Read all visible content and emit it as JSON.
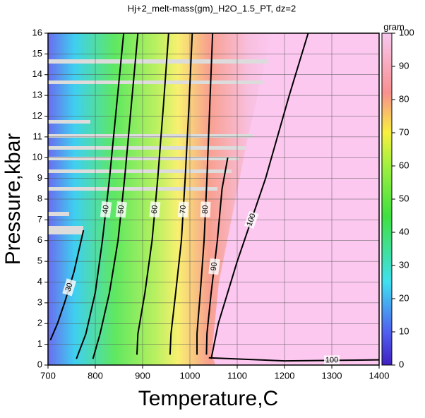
{
  "chart_data": {
    "type": "contour",
    "title": "Hj+2_melt-mass(gm)_H2O_1.5_PT, dz=2",
    "x_label": "Temperature,C",
    "y_label": "Pressure,kbar",
    "xlim": [
      700,
      1400
    ],
    "ylim": [
      0,
      16
    ],
    "xticks": [
      700,
      800,
      900,
      1000,
      1100,
      1200,
      1300,
      1400
    ],
    "yticks": [
      0,
      1,
      2,
      3,
      4,
      5,
      6,
      7,
      8,
      9,
      10,
      11,
      12,
      13,
      14,
      15,
      16
    ],
    "grid": true,
    "colorbar": {
      "label": "gram",
      "lim": [
        0,
        100
      ],
      "ticks": [
        0,
        10,
        20,
        30,
        40,
        50,
        60,
        70,
        80,
        90,
        100
      ]
    },
    "contours": [
      {
        "level": 30,
        "x": [
          705,
          720,
          735,
          755,
          775
        ],
        "y": [
          1.2,
          2.0,
          3.0,
          4.5,
          6.5
        ]
      },
      {
        "level": 40,
        "x": [
          760,
          780,
          800,
          815,
          830,
          845,
          860
        ],
        "y": [
          0.3,
          1.5,
          3.5,
          6,
          9,
          12.5,
          16
        ]
      },
      {
        "level": 50,
        "x": [
          795,
          810,
          830,
          848,
          862,
          876,
          890
        ],
        "y": [
          0.3,
          1.5,
          3.5,
          6,
          9,
          12.5,
          16
        ]
      },
      {
        "level": 60,
        "x": [
          888,
          890,
          905,
          920,
          932,
          944,
          955
        ],
        "y": [
          0.5,
          1.5,
          3.5,
          6,
          9,
          12.5,
          16
        ]
      },
      {
        "level": 70,
        "x": [
          958,
          960,
          970,
          982,
          990,
          998,
          1005
        ],
        "y": [
          0.5,
          1.5,
          3.5,
          6,
          9,
          12.5,
          16
        ]
      },
      {
        "level": 80,
        "x": [
          1015,
          1015,
          1022,
          1030,
          1036,
          1042,
          1048
        ],
        "y": [
          0.5,
          1.5,
          3.5,
          6,
          9,
          12.5,
          16
        ]
      },
      {
        "level": 90,
        "x": [
          1035,
          1036,
          1045,
          1058,
          1068,
          1080
        ],
        "y": [
          0.5,
          1.5,
          3.5,
          6,
          8.5,
          10
        ]
      },
      {
        "level": 100,
        "x": [
          1045,
          1060,
          1100,
          1160,
          1210,
          1250
        ],
        "y": [
          0.3,
          2,
          5,
          9,
          13,
          16
        ]
      },
      {
        "level": 100,
        "x": [
          1040,
          1200,
          1400
        ],
        "y": [
          0.35,
          0.2,
          0.25
        ]
      }
    ]
  }
}
